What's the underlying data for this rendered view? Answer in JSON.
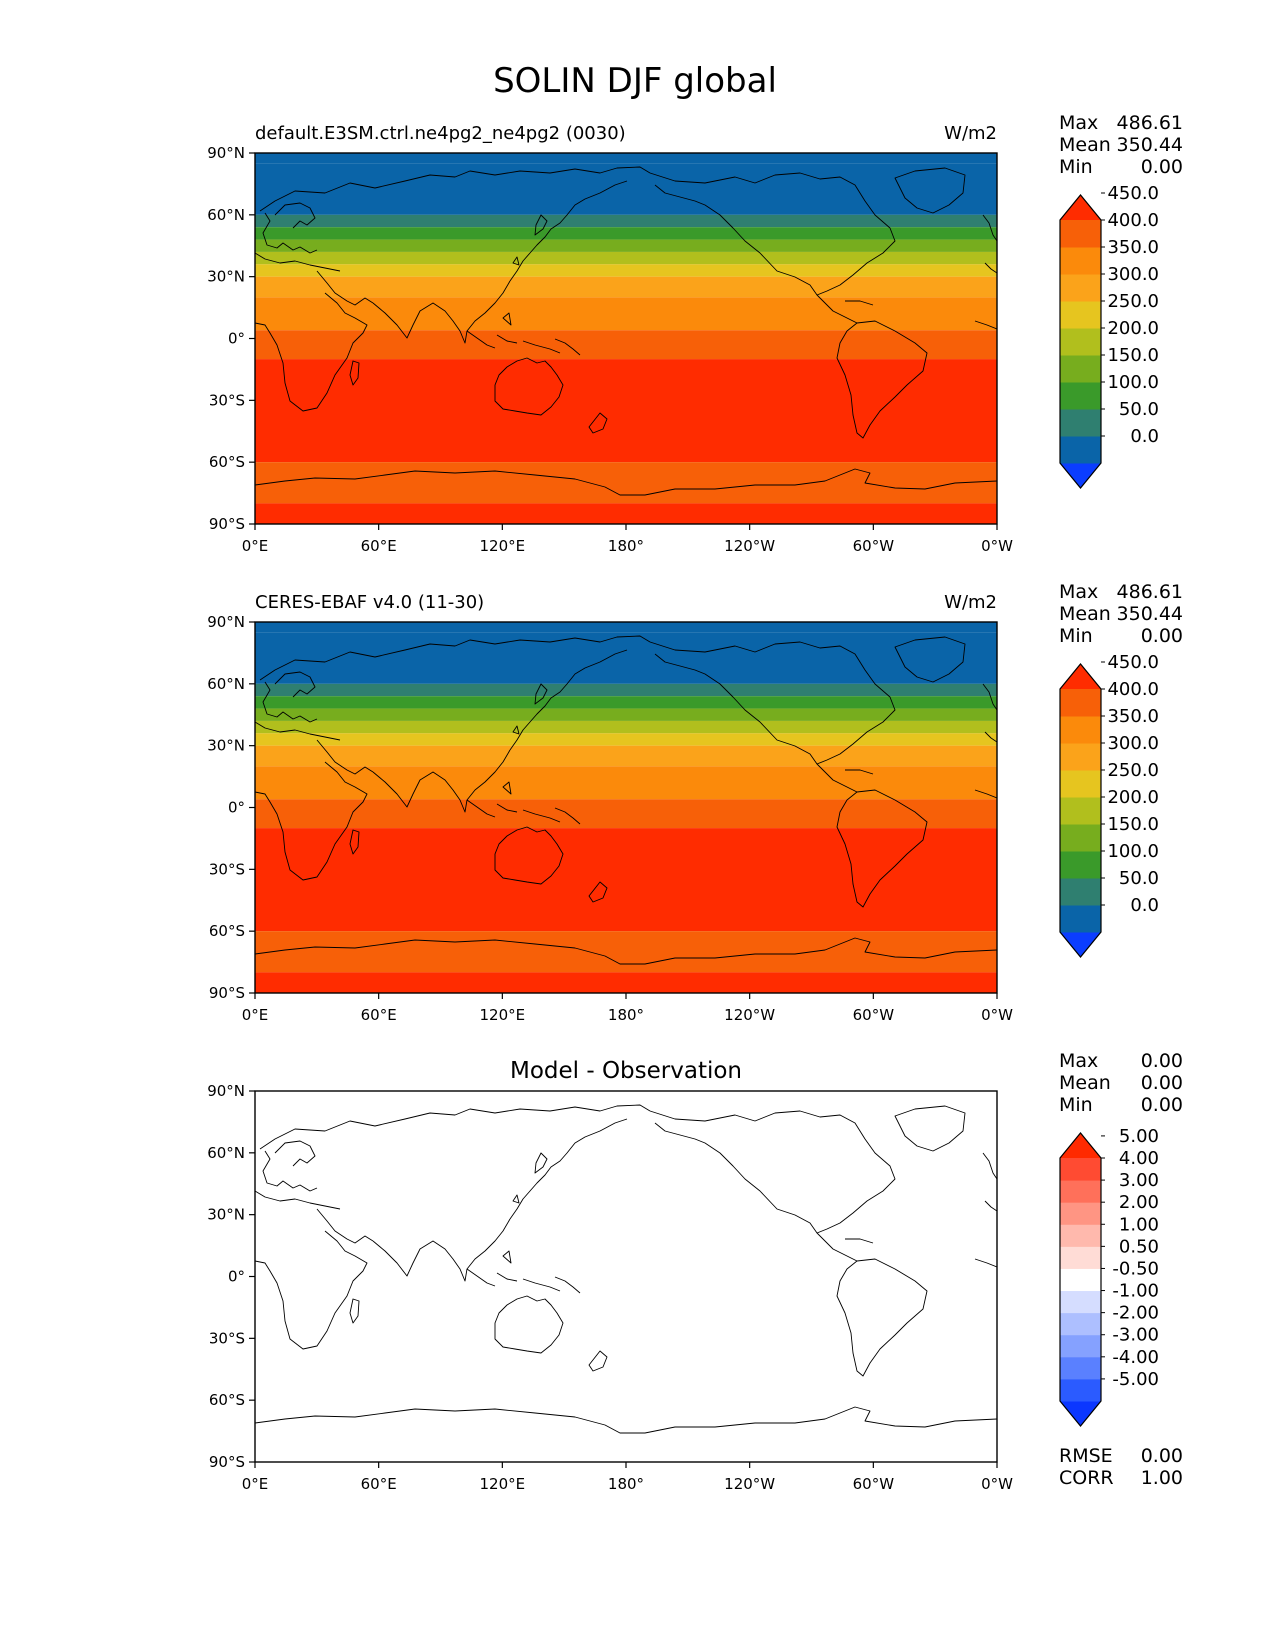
{
  "figure": {
    "title": "SOLIN DJF global"
  },
  "chart_data": [
    {
      "type": "heatmap",
      "title": "default.E3SM.ctrl.ne4pg2_ne4pg2 (0030)",
      "units": "W/m2",
      "projection": "cylindrical (Plate Carrée), centered at 180°",
      "x_ticks": [
        "0°E",
        "60°E",
        "120°E",
        "180°",
        "120°W",
        "60°W",
        "0°W"
      ],
      "y_ticks": [
        "90°N",
        "60°N",
        "30°N",
        "0°",
        "30°S",
        "60°S",
        "90°S"
      ],
      "xlim": [
        0,
        360
      ],
      "ylim": [
        -90,
        90
      ],
      "stats": [
        {
          "label": "Max",
          "value": "486.61"
        },
        {
          "label": "Mean",
          "value": "350.44"
        },
        {
          "label": "Min",
          "value": "0.00"
        }
      ],
      "colorbar": {
        "extend": "both",
        "levels": [
          0,
          50,
          100,
          150,
          200,
          250,
          300,
          350,
          400,
          450
        ],
        "tick_labels": [
          "0.0",
          "50.0",
          "100.0",
          "150.0",
          "200.0",
          "250.0",
          "300.0",
          "350.0",
          "400.0",
          "450.0"
        ],
        "colors": [
          "#0b3dff",
          "#0a64a8",
          "#2f7f70",
          "#3a9a2a",
          "#77ad1e",
          "#b1bf1d",
          "#e6c51f",
          "#fba31a",
          "#fb8a0b",
          "#f76008",
          "#ff2c00"
        ]
      },
      "zonal_bands": [
        {
          "lat_min": 85,
          "lat_max": 90,
          "value": 0
        },
        {
          "lat_min": 60,
          "lat_max": 85,
          "value": 25
        },
        {
          "lat_min": 54,
          "lat_max": 60,
          "value": 75
        },
        {
          "lat_min": 48,
          "lat_max": 54,
          "value": 125
        },
        {
          "lat_min": 42,
          "lat_max": 48,
          "value": 175
        },
        {
          "lat_min": 36,
          "lat_max": 42,
          "value": 225
        },
        {
          "lat_min": 30,
          "lat_max": 36,
          "value": 275
        },
        {
          "lat_min": 20,
          "lat_max": 30,
          "value": 325
        },
        {
          "lat_min": 4,
          "lat_max": 20,
          "value": 375
        },
        {
          "lat_min": -10,
          "lat_max": 4,
          "value": 425
        },
        {
          "lat_min": -60,
          "lat_max": -10,
          "value": 475
        },
        {
          "lat_min": -80,
          "lat_max": -60,
          "value": 425
        },
        {
          "lat_min": -90,
          "lat_max": -80,
          "value": 475
        }
      ]
    },
    {
      "type": "heatmap",
      "title": "CERES-EBAF v4.0 (11-30)",
      "units": "W/m2",
      "projection": "cylindrical (Plate Carrée), centered at 180°",
      "x_ticks": [
        "0°E",
        "60°E",
        "120°E",
        "180°",
        "120°W",
        "60°W",
        "0°W"
      ],
      "y_ticks": [
        "90°N",
        "60°N",
        "30°N",
        "0°",
        "30°S",
        "60°S",
        "90°S"
      ],
      "xlim": [
        0,
        360
      ],
      "ylim": [
        -90,
        90
      ],
      "stats": [
        {
          "label": "Max",
          "value": "486.61"
        },
        {
          "label": "Mean",
          "value": "350.44"
        },
        {
          "label": "Min",
          "value": "0.00"
        }
      ],
      "colorbar": {
        "extend": "both",
        "levels": [
          0,
          50,
          100,
          150,
          200,
          250,
          300,
          350,
          400,
          450
        ],
        "tick_labels": [
          "0.0",
          "50.0",
          "100.0",
          "150.0",
          "200.0",
          "250.0",
          "300.0",
          "350.0",
          "400.0",
          "450.0"
        ],
        "colors": [
          "#0b3dff",
          "#0a64a8",
          "#2f7f70",
          "#3a9a2a",
          "#77ad1e",
          "#b1bf1d",
          "#e6c51f",
          "#fba31a",
          "#fb8a0b",
          "#f76008",
          "#ff2c00"
        ]
      },
      "zonal_bands": [
        {
          "lat_min": 85,
          "lat_max": 90,
          "value": 0
        },
        {
          "lat_min": 60,
          "lat_max": 85,
          "value": 25
        },
        {
          "lat_min": 54,
          "lat_max": 60,
          "value": 75
        },
        {
          "lat_min": 48,
          "lat_max": 54,
          "value": 125
        },
        {
          "lat_min": 42,
          "lat_max": 48,
          "value": 175
        },
        {
          "lat_min": 36,
          "lat_max": 42,
          "value": 225
        },
        {
          "lat_min": 30,
          "lat_max": 36,
          "value": 275
        },
        {
          "lat_min": 20,
          "lat_max": 30,
          "value": 325
        },
        {
          "lat_min": 4,
          "lat_max": 20,
          "value": 375
        },
        {
          "lat_min": -10,
          "lat_max": 4,
          "value": 425
        },
        {
          "lat_min": -60,
          "lat_max": -10,
          "value": 475
        },
        {
          "lat_min": -80,
          "lat_max": -60,
          "value": 425
        },
        {
          "lat_min": -90,
          "lat_max": -80,
          "value": 475
        }
      ]
    },
    {
      "type": "heatmap",
      "title": "Model - Observation",
      "units": "",
      "projection": "cylindrical (Plate Carrée), centered at 180°",
      "x_ticks": [
        "0°E",
        "60°E",
        "120°E",
        "180°",
        "120°W",
        "60°W",
        "0°W"
      ],
      "y_ticks": [
        "90°N",
        "60°N",
        "30°N",
        "0°",
        "30°S",
        "60°S",
        "90°S"
      ],
      "xlim": [
        0,
        360
      ],
      "ylim": [
        -90,
        90
      ],
      "stats": [
        {
          "label": "Max",
          "value": "0.00"
        },
        {
          "label": "Mean",
          "value": "0.00"
        },
        {
          "label": "Min",
          "value": "0.00"
        }
      ],
      "extra_stats": [
        {
          "label": "RMSE",
          "value": "0.00"
        },
        {
          "label": "CORR",
          "value": "1.00"
        }
      ],
      "colorbar": {
        "extend": "both",
        "levels": [
          -5,
          -4,
          -3,
          -2,
          -1,
          -0.5,
          0.5,
          1,
          2,
          3,
          4,
          5
        ],
        "tick_labels": [
          "-5.00",
          "-4.00",
          "-3.00",
          "-2.00",
          "-1.00",
          "-0.50",
          "0.50",
          "1.00",
          "2.00",
          "3.00",
          "4.00",
          "5.00"
        ],
        "colors": [
          "#0b37ff",
          "#2b5bff",
          "#5a80ff",
          "#85a1ff",
          "#adbfff",
          "#d5ddff",
          "#ffffff",
          "#ffdcd6",
          "#ffb9ad",
          "#ff9583",
          "#ff705a",
          "#ff4b32",
          "#ff2a00"
        ]
      },
      "zonal_bands": [
        {
          "lat_min": -90,
          "lat_max": 90,
          "value": 0
        }
      ]
    }
  ]
}
